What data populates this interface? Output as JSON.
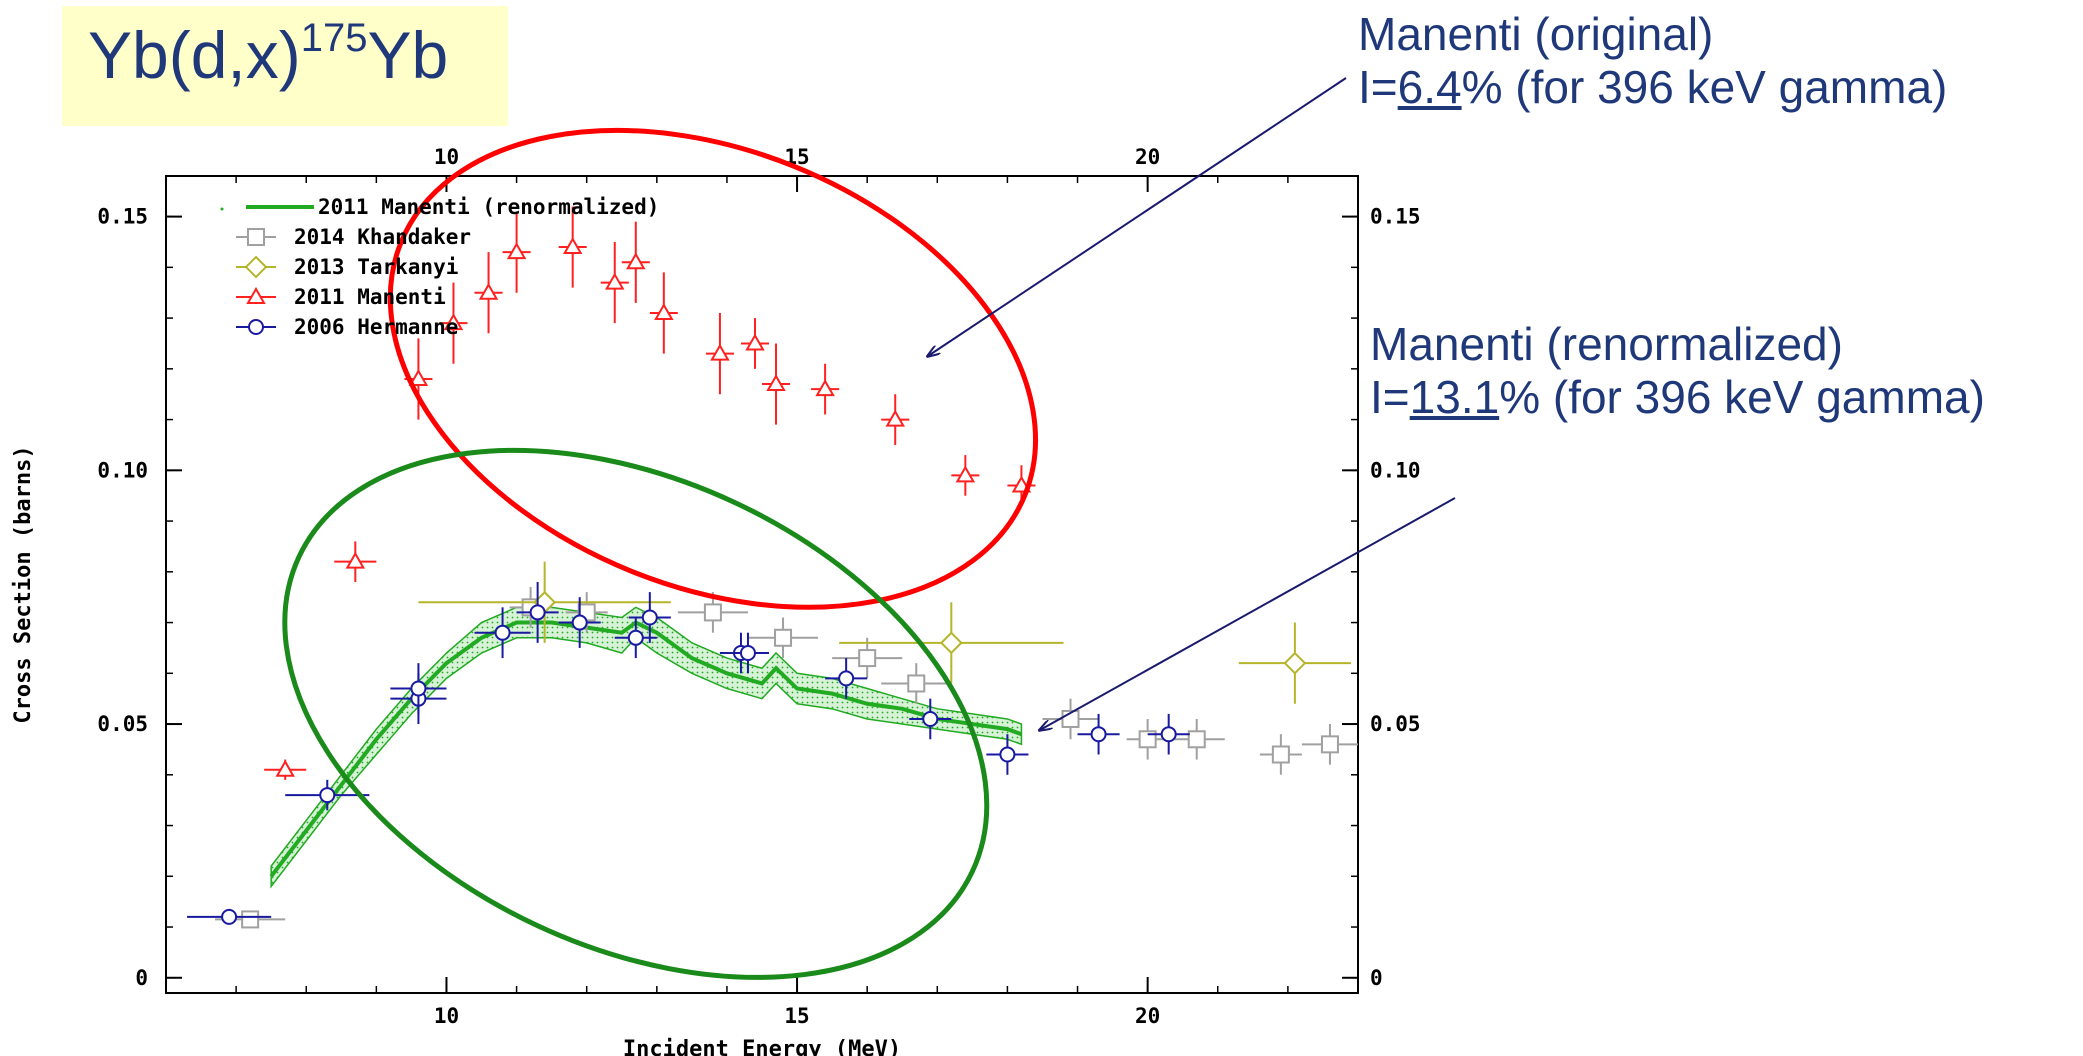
{
  "title": {
    "prefix": "Yb(d,x)",
    "superscript": "175",
    "suffix": "Yb"
  },
  "annotations": [
    {
      "name": "original",
      "line1": "Manenti (original)",
      "line2_prefix": "I=",
      "line2_value": "6.4",
      "line2_suffix": "% (for 396 keV gamma)",
      "ellipse_color": "#ff0000"
    },
    {
      "name": "renormalized",
      "line1": "Manenti (renormalized)",
      "line2_prefix": "I=",
      "line2_value": "13.1",
      "line2_suffix": "% (for 396 keV gamma)",
      "ellipse_color": "#1a8a1a"
    }
  ],
  "chart_data": {
    "type": "scatter",
    "xlabel": "Incident Energy (MeV)",
    "ylabel": "Cross Section (barns)",
    "xlim": [
      6,
      23
    ],
    "ylim": [
      -0.003,
      0.158
    ],
    "x_ticks": [
      10,
      15,
      20
    ],
    "y_ticks": [
      0,
      0.05,
      0.1,
      0.15
    ],
    "x_tick_labels": [
      "10",
      "15",
      "20"
    ],
    "y_tick_labels": [
      "0",
      "0.05",
      "0.10",
      "0.15"
    ],
    "grid": false,
    "legend_position": "top-left",
    "series": [
      {
        "name": "2011 Manenti (renormalized)",
        "color": "#22aa22",
        "kind": "band",
        "x": [
          7.5,
          8.0,
          8.5,
          9.0,
          9.5,
          10.0,
          10.5,
          11.0,
          11.5,
          12.0,
          12.5,
          12.7,
          13.0,
          13.5,
          14.0,
          14.5,
          14.7,
          15.0,
          15.5,
          16.0,
          16.5,
          17.0,
          17.5,
          18.0,
          18.2
        ],
        "y": [
          0.02,
          0.029,
          0.038,
          0.047,
          0.055,
          0.062,
          0.067,
          0.07,
          0.07,
          0.069,
          0.068,
          0.07,
          0.068,
          0.063,
          0.06,
          0.058,
          0.061,
          0.057,
          0.056,
          0.054,
          0.053,
          0.051,
          0.05,
          0.049,
          0.048
        ],
        "y_low": [
          0.018,
          0.027,
          0.036,
          0.044,
          0.052,
          0.059,
          0.064,
          0.067,
          0.067,
          0.066,
          0.064,
          0.067,
          0.064,
          0.06,
          0.057,
          0.055,
          0.058,
          0.054,
          0.053,
          0.051,
          0.05,
          0.049,
          0.048,
          0.047,
          0.046
        ],
        "y_high": [
          0.022,
          0.031,
          0.04,
          0.049,
          0.057,
          0.064,
          0.07,
          0.073,
          0.073,
          0.072,
          0.071,
          0.073,
          0.071,
          0.066,
          0.063,
          0.061,
          0.064,
          0.06,
          0.059,
          0.057,
          0.055,
          0.053,
          0.052,
          0.051,
          0.05
        ]
      },
      {
        "name": "2014 Khandaker",
        "color": "#a0a0a0",
        "marker": "square",
        "points": [
          {
            "x": 7.2,
            "y": 0.0115,
            "xerr": 0.5,
            "yerr": 0.001
          },
          {
            "x": 11.2,
            "y": 0.073,
            "xerr": 0.3,
            "yerr": 0.004
          },
          {
            "x": 12.0,
            "y": 0.072,
            "xerr": 0.3,
            "yerr": 0.004
          },
          {
            "x": 13.8,
            "y": 0.072,
            "xerr": 0.5,
            "yerr": 0.004
          },
          {
            "x": 14.8,
            "y": 0.067,
            "xerr": 0.5,
            "yerr": 0.004
          },
          {
            "x": 16.0,
            "y": 0.063,
            "xerr": 0.5,
            "yerr": 0.004
          },
          {
            "x": 16.7,
            "y": 0.058,
            "xerr": 0.5,
            "yerr": 0.004
          },
          {
            "x": 18.9,
            "y": 0.051,
            "xerr": 0.4,
            "yerr": 0.004
          },
          {
            "x": 20.0,
            "y": 0.047,
            "xerr": 0.3,
            "yerr": 0.004
          },
          {
            "x": 20.7,
            "y": 0.047,
            "xerr": 0.4,
            "yerr": 0.004
          },
          {
            "x": 21.9,
            "y": 0.044,
            "xerr": 0.3,
            "yerr": 0.004
          },
          {
            "x": 22.6,
            "y": 0.046,
            "xerr": 0.4,
            "yerr": 0.004
          }
        ]
      },
      {
        "name": "2013 Tarkanyi",
        "color": "#b5b52a",
        "marker": "diamond",
        "points": [
          {
            "x": 11.4,
            "y": 0.074,
            "xerr": 1.8,
            "yerr": 0.008
          },
          {
            "x": 17.2,
            "y": 0.066,
            "xerr": 1.6,
            "yerr": 0.008
          },
          {
            "x": 22.1,
            "y": 0.062,
            "xerr": 0.8,
            "yerr": 0.008
          }
        ]
      },
      {
        "name": "2011 Manenti",
        "color": "#ff2020",
        "marker": "triangle",
        "points": [
          {
            "x": 7.7,
            "y": 0.041,
            "xerr": 0.3,
            "yerr": 0.002
          },
          {
            "x": 8.7,
            "y": 0.082,
            "xerr": 0.3,
            "yerr": 0.004
          },
          {
            "x": 9.6,
            "y": 0.118,
            "xerr": 0.2,
            "yerr": 0.008
          },
          {
            "x": 10.1,
            "y": 0.129,
            "xerr": 0.2,
            "yerr": 0.008
          },
          {
            "x": 10.6,
            "y": 0.135,
            "xerr": 0.2,
            "yerr": 0.008
          },
          {
            "x": 11.0,
            "y": 0.143,
            "xerr": 0.2,
            "yerr": 0.008
          },
          {
            "x": 11.8,
            "y": 0.144,
            "xerr": 0.2,
            "yerr": 0.008
          },
          {
            "x": 12.4,
            "y": 0.137,
            "xerr": 0.2,
            "yerr": 0.008
          },
          {
            "x": 12.7,
            "y": 0.141,
            "xerr": 0.2,
            "yerr": 0.008
          },
          {
            "x": 13.1,
            "y": 0.131,
            "xerr": 0.2,
            "yerr": 0.008
          },
          {
            "x": 13.9,
            "y": 0.123,
            "xerr": 0.2,
            "yerr": 0.008
          },
          {
            "x": 14.4,
            "y": 0.125,
            "xerr": 0.2,
            "yerr": 0.005
          },
          {
            "x": 14.7,
            "y": 0.117,
            "xerr": 0.2,
            "yerr": 0.008
          },
          {
            "x": 15.4,
            "y": 0.116,
            "xerr": 0.2,
            "yerr": 0.005
          },
          {
            "x": 16.4,
            "y": 0.11,
            "xerr": 0.2,
            "yerr": 0.005
          },
          {
            "x": 17.4,
            "y": 0.099,
            "xerr": 0.2,
            "yerr": 0.004
          },
          {
            "x": 18.2,
            "y": 0.097,
            "xerr": 0.2,
            "yerr": 0.004
          }
        ]
      },
      {
        "name": "2006 Hermanne",
        "color": "#1a1aa0",
        "marker": "circle",
        "points": [
          {
            "x": 6.9,
            "y": 0.012,
            "xerr": 0.6,
            "yerr": 0.001
          },
          {
            "x": 8.3,
            "y": 0.036,
            "xerr": 0.6,
            "yerr": 0.003
          },
          {
            "x": 9.6,
            "y": 0.055,
            "xerr": 0.4,
            "yerr": 0.005
          },
          {
            "x": 9.6,
            "y": 0.057,
            "xerr": 0.4,
            "yerr": 0.005
          },
          {
            "x": 10.8,
            "y": 0.068,
            "xerr": 0.4,
            "yerr": 0.005
          },
          {
            "x": 11.3,
            "y": 0.072,
            "xerr": 0.3,
            "yerr": 0.006
          },
          {
            "x": 11.9,
            "y": 0.07,
            "xerr": 0.3,
            "yerr": 0.005
          },
          {
            "x": 12.7,
            "y": 0.067,
            "xerr": 0.3,
            "yerr": 0.004
          },
          {
            "x": 12.9,
            "y": 0.071,
            "xerr": 0.3,
            "yerr": 0.005
          },
          {
            "x": 14.2,
            "y": 0.064,
            "xerr": 0.3,
            "yerr": 0.004
          },
          {
            "x": 14.3,
            "y": 0.064,
            "xerr": 0.3,
            "yerr": 0.004
          },
          {
            "x": 15.7,
            "y": 0.059,
            "xerr": 0.3,
            "yerr": 0.004
          },
          {
            "x": 16.9,
            "y": 0.051,
            "xerr": 0.3,
            "yerr": 0.004
          },
          {
            "x": 18.0,
            "y": 0.044,
            "xerr": 0.3,
            "yerr": 0.004
          },
          {
            "x": 19.3,
            "y": 0.048,
            "xerr": 0.3,
            "yerr": 0.004
          },
          {
            "x": 20.3,
            "y": 0.048,
            "xerr": 0.3,
            "yerr": 0.004
          }
        ]
      }
    ],
    "ellipses": [
      {
        "series": "2011 Manenti",
        "color": "#ff0000",
        "cx": 13.8,
        "cy": 0.12,
        "rx": 4.8,
        "ry": 0.043,
        "angle": 22
      },
      {
        "series": "2011 Manenti (renormalized)",
        "color": "#1a8a1a",
        "cx": 12.7,
        "cy": 0.052,
        "rx": 5.3,
        "ry": 0.046,
        "angle": 25
      }
    ]
  }
}
